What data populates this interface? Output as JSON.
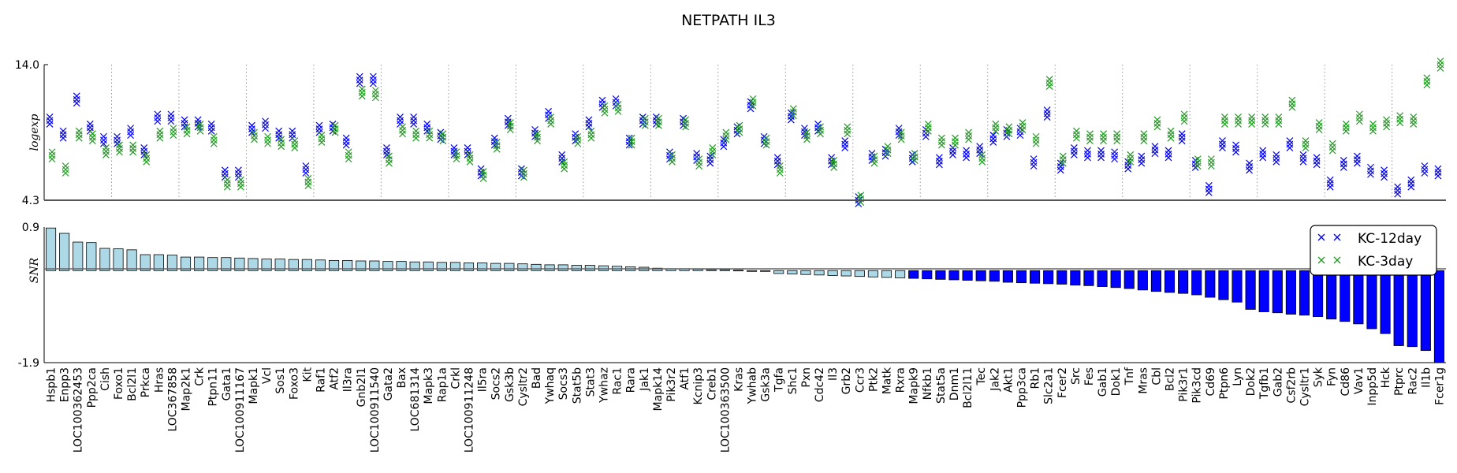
{
  "chart_data": {
    "type": "scatter+bar",
    "title": "NETPATH IL3",
    "genes": [
      "Hspb1",
      "Enpp3",
      "LOC100362453",
      "Ppp2ca",
      "Cish",
      "Foxo1",
      "Bcl2l1",
      "Prkca",
      "Hras",
      "LOC367858",
      "Map2k1",
      "Crk",
      "Ptpn11",
      "Gata1",
      "LOC100911167",
      "Mapk1",
      "Vcl",
      "Sos1",
      "Foxo3",
      "Kit",
      "Raf1",
      "Atf2",
      "Il3ra",
      "Gnb2l1",
      "LOC100911540",
      "Gata2",
      "Bax",
      "LOC681314",
      "Mapk3",
      "Rap1a",
      "Crkl",
      "LOC100911248",
      "Il5ra",
      "Socs2",
      "Gsk3b",
      "Cysltr2",
      "Bad",
      "Ywhaq",
      "Socs3",
      "Stat5b",
      "Stat3",
      "Ywhaz",
      "Rac1",
      "Rara",
      "Jak1",
      "Mapk14",
      "Pik3r2",
      "Atf1",
      "Kcnip3",
      "Creb1",
      "LOC100363500",
      "Kras",
      "Ywhab",
      "Gsk3a",
      "Tgfa",
      "Shc1",
      "Pxn",
      "Cdc42",
      "Il3",
      "Grb2",
      "Ccr3",
      "Ptk2",
      "Matk",
      "Rxra",
      "Mapk9",
      "Nfkb1",
      "Stat5a",
      "Dnm1",
      "Bcl2l11",
      "Tec",
      "Jak2",
      "Akt1",
      "Ppp3ca",
      "Rb1",
      "Slc2a1",
      "Fcer2",
      "Src",
      "Fes",
      "Gab1",
      "Dok1",
      "Tnf",
      "Mras",
      "Cbl",
      "Bcl2",
      "Pik3r1",
      "Pik3cd",
      "Cd69",
      "Ptpn6",
      "Lyn",
      "Dok2",
      "Tgfb1",
      "Gab2",
      "Csf2rb",
      "Cysltr1",
      "Syk",
      "Fyn",
      "Cd86",
      "Vav1",
      "Inpp5d",
      "Hck",
      "Ptprc",
      "Rac2",
      "Il1b",
      "Fcer1g"
    ],
    "top_panel": {
      "ylabel": "logexp",
      "ylim": [
        4.3,
        14.0
      ],
      "yticks": [
        "14.0",
        "4.3"
      ],
      "group_size": 3,
      "series": [
        {
          "name": "KC-12day",
          "values": [
            10.0,
            9.0,
            11.5,
            9.5,
            8.6,
            8.6,
            9.2,
            7.8,
            10.2,
            10.2,
            9.8,
            9.8,
            9.5,
            6.2,
            6.2,
            9.4,
            9.7,
            9.0,
            9.0,
            6.5,
            9.4,
            9.5,
            8.5,
            12.9,
            12.9,
            7.8,
            10.0,
            10.0,
            9.5,
            8.9,
            7.8,
            7.8,
            6.3,
            8.5,
            9.9,
            6.3,
            9.1,
            10.4,
            7.3,
            8.8,
            9.8,
            11.2,
            11.3,
            8.5,
            10.0,
            10.0,
            7.5,
            9.9,
            7.4,
            7.2,
            8.4,
            9.3,
            11.1,
            8.6,
            7.1,
            10.3,
            9.2,
            9.5,
            7.1,
            8.3,
            4.3,
            7.4,
            7.7,
            9.2,
            7.3,
            9.1,
            7.1,
            7.8,
            7.6,
            7.9,
            8.7,
            9.1,
            9.2,
            7.0,
            10.5,
            6.7,
            7.8,
            7.6,
            7.6,
            7.5,
            6.8,
            7.2,
            7.9,
            7.6,
            8.8,
            6.9,
            5.1,
            8.3,
            8.0,
            6.7,
            7.6,
            7.3,
            8.3,
            7.3,
            7.1,
            5.5,
            6.9,
            7.2,
            6.4,
            6.2,
            5.0,
            5.5,
            6.5,
            6.3
          ],
          "color": "#0000ee"
        },
        {
          "name": "KC-3day",
          "values": [
            7.5,
            6.5,
            9.0,
            8.8,
            7.8,
            8.0,
            8.0,
            7.3,
            9.0,
            9.2,
            9.3,
            9.5,
            8.6,
            5.5,
            5.5,
            8.9,
            8.6,
            8.4,
            8.3,
            5.6,
            8.7,
            9.4,
            7.5,
            12.0,
            11.9,
            7.2,
            9.3,
            9.0,
            9.0,
            8.8,
            7.5,
            7.3,
            6.1,
            8.2,
            9.6,
            6.2,
            8.8,
            10.0,
            6.8,
            8.6,
            9.0,
            10.8,
            10.9,
            8.5,
            9.9,
            9.9,
            7.3,
            9.8,
            7.0,
            7.8,
            8.9,
            9.4,
            11.3,
            8.5,
            6.5,
            10.6,
            8.9,
            9.3,
            6.9,
            9.3,
            4.4,
            7.2,
            7.9,
            8.9,
            7.4,
            9.5,
            8.5,
            8.5,
            8.9,
            7.3,
            9.5,
            9.3,
            9.6,
            8.6,
            12.7,
            7.2,
            9.0,
            8.8,
            8.8,
            8.8,
            7.3,
            8.8,
            9.8,
            9.0,
            10.2,
            7.0,
            7.0,
            10.0,
            10.0,
            10.0,
            10.0,
            10.0,
            11.2,
            8.3,
            9.6,
            8.1,
            9.5,
            10.2,
            9.5,
            9.8,
            10.1,
            10.0,
            12.8,
            14.0
          ],
          "color": "#229922"
        }
      ]
    },
    "bottom_panel": {
      "ylabel": "SNR",
      "ylim": [
        -1.9,
        0.9
      ],
      "yticks": [
        "0.9",
        "-1.9"
      ],
      "values": [
        0.88,
        0.77,
        0.59,
        0.58,
        0.46,
        0.45,
        0.43,
        0.33,
        0.33,
        0.32,
        0.28,
        0.28,
        0.27,
        0.27,
        0.26,
        0.25,
        0.24,
        0.24,
        0.23,
        0.23,
        0.22,
        0.21,
        0.21,
        0.2,
        0.2,
        0.19,
        0.19,
        0.18,
        0.18,
        0.17,
        0.17,
        0.16,
        0.16,
        0.15,
        0.15,
        0.14,
        0.13,
        0.12,
        0.12,
        0.11,
        0.11,
        0.1,
        0.09,
        0.08,
        0.07,
        0.05,
        0.04,
        0.04,
        0.03,
        0.02,
        0.02,
        0.01,
        0.0,
        0.0,
        -0.06,
        -0.07,
        -0.08,
        -0.09,
        -0.1,
        -0.11,
        -0.12,
        -0.13,
        -0.14,
        -0.15,
        -0.16,
        -0.17,
        -0.18,
        -0.19,
        -0.2,
        -0.21,
        -0.22,
        -0.24,
        -0.25,
        -0.26,
        -0.27,
        -0.28,
        -0.3,
        -0.31,
        -0.33,
        -0.35,
        -0.37,
        -0.4,
        -0.43,
        -0.45,
        -0.47,
        -0.5,
        -0.55,
        -0.6,
        -0.65,
        -0.8,
        -0.85,
        -0.87,
        -0.9,
        -0.92,
        -0.95,
        -1.0,
        -1.05,
        -1.1,
        -1.2,
        -1.3,
        -1.55,
        -1.57,
        -1.65,
        -1.9
      ],
      "color_positive": "#add8e6",
      "color_negative_weak": "#add8e6",
      "color_negative_strong": "#0000ff"
    },
    "legend": {
      "position": "right",
      "entries": [
        "KC-12day",
        "KC-3day"
      ]
    }
  }
}
